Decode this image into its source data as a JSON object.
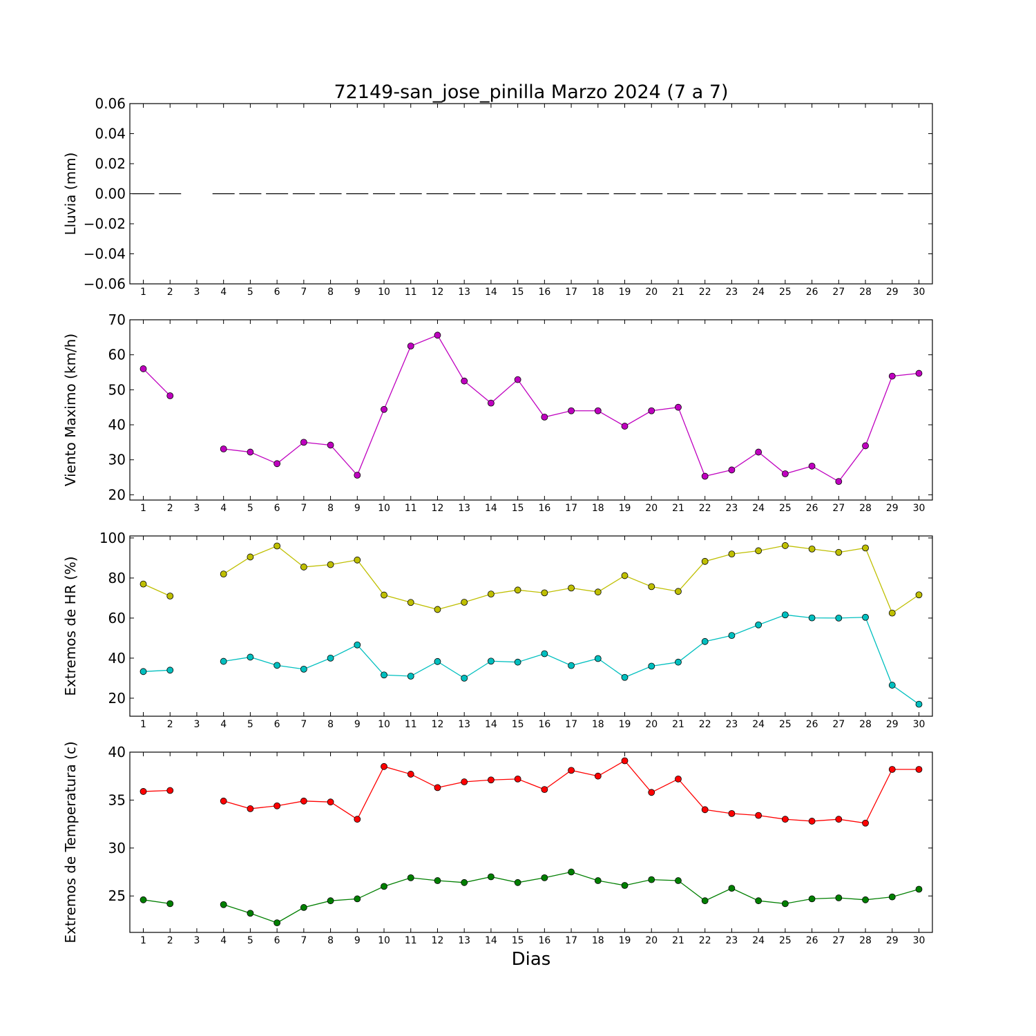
{
  "figure": {
    "title": "72149-san_jose_pinilla Marzo 2024  (7 a 7)",
    "xlabel": "Dias"
  },
  "chart_data": [
    {
      "type": "line",
      "ylabel": "Lluvia (mm)",
      "categories": [
        "1",
        "2",
        "3",
        "4",
        "5",
        "6",
        "7",
        "8",
        "9",
        "10",
        "11",
        "12",
        "13",
        "14",
        "15",
        "16",
        "17",
        "18",
        "19",
        "20",
        "21",
        "22",
        "23",
        "24",
        "25",
        "26",
        "27",
        "28",
        "29",
        "30"
      ],
      "ylim": [
        -0.06,
        0.06
      ],
      "yticks": [
        "0.06",
        "0.04",
        "0.02",
        "0.00",
        "−0.02",
        "−0.04",
        "−0.06"
      ],
      "ytick_values": [
        0.06,
        0.04,
        0.02,
        0.0,
        -0.02,
        -0.04,
        -0.06
      ],
      "grid": false,
      "series": [
        {
          "color": "#000000",
          "style": "bar-dash",
          "values": [
            0,
            0,
            null,
            0,
            0,
            0,
            0,
            0,
            0,
            0,
            0,
            0,
            0,
            0,
            0,
            0,
            0,
            0,
            0,
            0,
            0,
            0,
            0,
            0,
            0,
            0,
            0,
            0,
            0,
            0
          ]
        }
      ]
    },
    {
      "type": "line",
      "ylabel": "Viento Maximo (km/h)",
      "categories": [
        "1",
        "2",
        "3",
        "4",
        "5",
        "6",
        "7",
        "8",
        "9",
        "10",
        "11",
        "12",
        "13",
        "14",
        "15",
        "16",
        "17",
        "18",
        "19",
        "20",
        "21",
        "22",
        "23",
        "24",
        "25",
        "26",
        "27",
        "28",
        "29",
        "30"
      ],
      "ylim": [
        18.5,
        70
      ],
      "yticks": [
        "70",
        "60",
        "50",
        "40",
        "30",
        "20"
      ],
      "ytick_values": [
        70,
        60,
        50,
        40,
        30,
        20
      ],
      "grid": false,
      "series": [
        {
          "color": "#bf00bf",
          "values": [
            56,
            48.3,
            null,
            33.1,
            32.2,
            28.9,
            35,
            34.2,
            25.6,
            44.4,
            62.5,
            65.6,
            52.5,
            46.2,
            52.9,
            42.2,
            44,
            44,
            39.6,
            44,
            45,
            25.3,
            27.1,
            32.2,
            26,
            28.2,
            23.8,
            34,
            53.9,
            54.7
          ]
        }
      ]
    },
    {
      "type": "line",
      "ylabel": "Extremos de HR (%)",
      "categories": [
        "1",
        "2",
        "3",
        "4",
        "5",
        "6",
        "7",
        "8",
        "9",
        "10",
        "11",
        "12",
        "13",
        "14",
        "15",
        "16",
        "17",
        "18",
        "19",
        "20",
        "21",
        "22",
        "23",
        "24",
        "25",
        "26",
        "27",
        "28",
        "29",
        "30"
      ],
      "ylim": [
        11,
        101
      ],
      "yticks": [
        "100",
        "80",
        "60",
        "40",
        "20"
      ],
      "ytick_values": [
        100,
        80,
        60,
        40,
        20
      ],
      "grid": false,
      "series": [
        {
          "color": "#bfbf00",
          "values": [
            77,
            71,
            null,
            82,
            90.5,
            96,
            85.5,
            86.7,
            89,
            71.5,
            67.8,
            64.3,
            67.9,
            72,
            74,
            72.6,
            75,
            73,
            81.2,
            75.7,
            73.3,
            88.3,
            92,
            93.6,
            96.2,
            94.5,
            92.8,
            95,
            62.5,
            71.6
          ]
        },
        {
          "color": "#00bfbf",
          "values": [
            33.3,
            34,
            null,
            38.4,
            40.5,
            36.4,
            34.5,
            40,
            46.6,
            31.6,
            31,
            38.3,
            30,
            38.5,
            38,
            42.2,
            36.3,
            39.8,
            30.4,
            36,
            38,
            48.3,
            51.3,
            56.6,
            61.6,
            60.1,
            60,
            60.4,
            26.5,
            17
          ]
        }
      ]
    },
    {
      "type": "line",
      "ylabel": "Extremos de Temperatura (c)",
      "categories": [
        "1",
        "2",
        "3",
        "4",
        "5",
        "6",
        "7",
        "8",
        "9",
        "10",
        "11",
        "12",
        "13",
        "14",
        "15",
        "16",
        "17",
        "18",
        "19",
        "20",
        "21",
        "22",
        "23",
        "24",
        "25",
        "26",
        "27",
        "28",
        "29",
        "30"
      ],
      "ylim": [
        21.2,
        40
      ],
      "yticks": [
        "40",
        "35",
        "30",
        "25"
      ],
      "ytick_values": [
        40,
        35,
        30,
        25
      ],
      "grid": false,
      "series": [
        {
          "color": "#ff0000",
          "values": [
            35.9,
            36,
            null,
            34.9,
            34.1,
            34.4,
            34.9,
            34.8,
            33,
            38.5,
            37.7,
            36.3,
            36.9,
            37.1,
            37.2,
            36.1,
            38.1,
            37.5,
            39.1,
            35.8,
            37.2,
            34,
            33.6,
            33.4,
            33,
            32.8,
            33,
            32.6,
            38.2,
            38.2
          ]
        },
        {
          "color": "#007f00",
          "values": [
            24.6,
            24.2,
            null,
            24.1,
            23.2,
            22.2,
            23.8,
            24.5,
            24.7,
            26,
            26.9,
            26.6,
            26.4,
            27,
            26.4,
            26.9,
            27.5,
            26.6,
            26.1,
            26.7,
            26.6,
            24.5,
            25.8,
            24.5,
            24.2,
            24.7,
            24.8,
            24.6,
            24.9,
            25.7
          ]
        }
      ]
    }
  ]
}
